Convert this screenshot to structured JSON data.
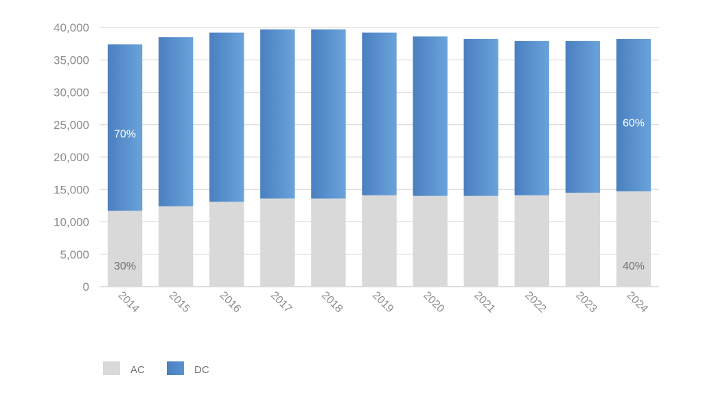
{
  "chart_data": {
    "type": "bar",
    "stacked": true,
    "title": "",
    "xlabel": "",
    "ylabel": "",
    "categories": [
      "2014",
      "2015",
      "2016",
      "2017",
      "2018",
      "2019",
      "2020",
      "2021",
      "2022",
      "2023",
      "2024"
    ],
    "series": [
      {
        "name": "AC",
        "color": "#d9d9d9",
        "values": [
          11700,
          12400,
          13100,
          13600,
          13600,
          14100,
          14000,
          14000,
          14100,
          14500,
          14700
        ]
      },
      {
        "name": "DC",
        "color": "#4f86c6",
        "values": [
          25700,
          26100,
          26100,
          26100,
          26100,
          25100,
          24600,
          24200,
          23800,
          23400,
          23500
        ]
      }
    ],
    "ylim": [
      0,
      40000
    ],
    "yticks": [
      0,
      5000,
      10000,
      15000,
      20000,
      25000,
      30000,
      35000,
      40000
    ],
    "ytick_labels": [
      "0",
      "5,000",
      "10,000",
      "15,000",
      "20,000",
      "25,000",
      "30,000",
      "35,000",
      "40,000"
    ],
    "grid": true,
    "legend_position": "bottom-left",
    "annotations": [
      {
        "category": "2014",
        "series": "DC",
        "text": "70%"
      },
      {
        "category": "2014",
        "series": "AC",
        "text": "30%"
      },
      {
        "category": "2024",
        "series": "DC",
        "text": "60%"
      },
      {
        "category": "2024",
        "series": "AC",
        "text": "40%"
      }
    ]
  }
}
